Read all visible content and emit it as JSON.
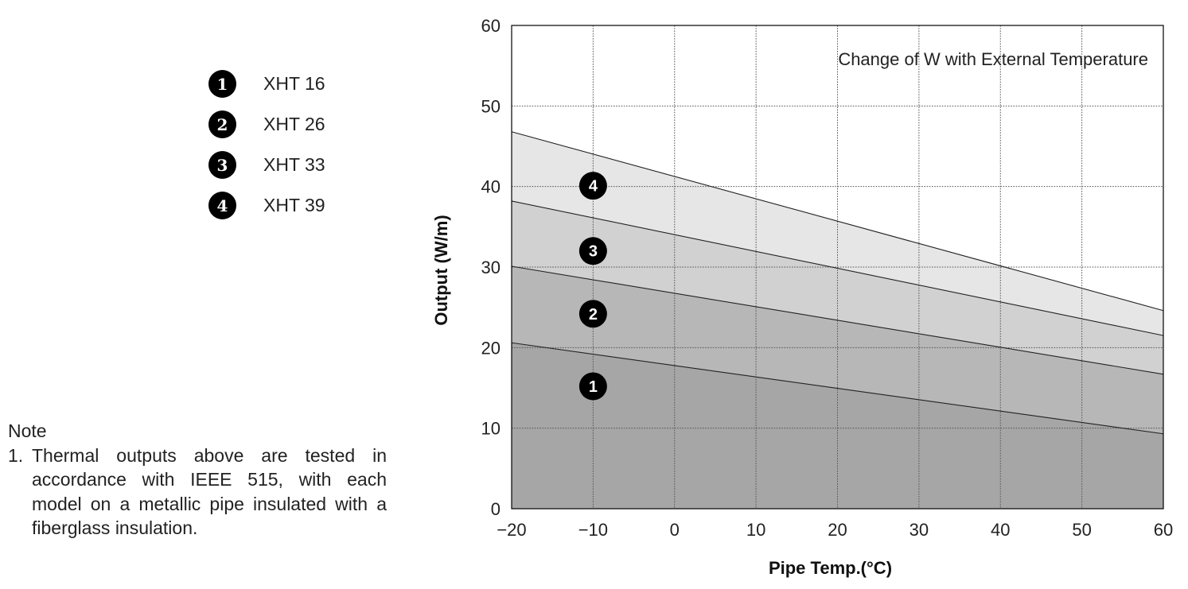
{
  "legend": {
    "items": [
      {
        "marker": "1",
        "label": "XHT 16"
      },
      {
        "marker": "2",
        "label": "XHT 26"
      },
      {
        "marker": "3",
        "label": "XHT 33"
      },
      {
        "marker": "4",
        "label": "XHT 39"
      }
    ]
  },
  "note": {
    "heading": "Note",
    "items": [
      {
        "num": "1.",
        "text": "Thermal outputs above are tested in accordance with IEEE 515, with each model on a metallic pipe insulated with a fiberglass insulation."
      }
    ]
  },
  "chart_data": {
    "type": "area",
    "title": "Change of W with External Temperature",
    "xlabel": "Pipe Temp.(°C)",
    "ylabel": "Output (W/m)",
    "xlim": [
      -20,
      60
    ],
    "ylim": [
      0,
      60
    ],
    "x_ticks": [
      -20,
      -10,
      0,
      10,
      20,
      30,
      40,
      50,
      60
    ],
    "y_ticks": [
      0,
      10,
      20,
      30,
      40,
      50,
      60
    ],
    "x_tick_labels": [
      "−20",
      "−10",
      "0",
      "10",
      "20",
      "30",
      "40",
      "50",
      "60"
    ],
    "y_tick_labels": [
      "0",
      "10",
      "20",
      "30",
      "40",
      "50",
      "60"
    ],
    "grid": true,
    "x": [
      -20,
      60
    ],
    "series": [
      {
        "name": "XHT 16",
        "marker": "1",
        "values": [
          20.6,
          9.3
        ],
        "marker_at": [
          -10,
          15.2
        ],
        "color": "#a7a6a7"
      },
      {
        "name": "XHT 26",
        "marker": "2",
        "values": [
          30.1,
          16.7
        ],
        "marker_at": [
          -10,
          24.2
        ],
        "color": "#b8b7b8"
      },
      {
        "name": "XHT 33",
        "marker": "3",
        "values": [
          38.2,
          21.5
        ],
        "marker_at": [
          -10,
          32.0
        ],
        "color": "#d2d1d2"
      },
      {
        "name": "XHT 39",
        "marker": "4",
        "values": [
          46.8,
          24.6
        ],
        "marker_at": [
          -10,
          40.1
        ],
        "color": "#e6e6e6"
      }
    ]
  }
}
